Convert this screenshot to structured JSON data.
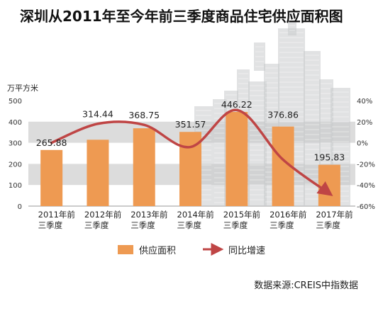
{
  "chart_data": {
    "type": "bar",
    "title": "深圳从2011年至今年前三季度商品住宅供应面积图",
    "ylabel": "万平方米",
    "ylim": [
      0,
      500
    ],
    "y_ticks": [
      0,
      100,
      200,
      300,
      400,
      500
    ],
    "y2lim": [
      -60,
      40
    ],
    "y2_ticks": [
      "40%",
      "20%",
      "0%",
      "-20%",
      "-40%",
      "-60%"
    ],
    "categories": [
      [
        "2011年前",
        "三季度"
      ],
      [
        "2012年前",
        "三季度"
      ],
      [
        "2013年前",
        "三季度"
      ],
      [
        "2014年前",
        "三季度"
      ],
      [
        "2015年前",
        "三季度"
      ],
      [
        "2016年前",
        "三季度"
      ],
      [
        "2017年前",
        "三季度"
      ]
    ],
    "series": [
      {
        "name": "供应面积",
        "type": "bar",
        "values": [
          265.88,
          314.44,
          368.75,
          351.57,
          446.22,
          376.86,
          195.83
        ],
        "labels": [
          "265.88",
          "314.44",
          "368.75",
          "351.57",
          "446.22",
          "376.86",
          "195.83"
        ]
      },
      {
        "name": "同比增速",
        "type": "line",
        "axis": "right",
        "values": [
          0,
          18,
          17,
          -4,
          31,
          -16,
          -48
        ]
      }
    ],
    "legend": "bottom",
    "source": "数据来源:CREIS中指数据",
    "colors": {
      "bar": "#ee9a52",
      "line": "#bf4545",
      "band": "#dcdcdc",
      "building": "#c9cacc"
    }
  }
}
